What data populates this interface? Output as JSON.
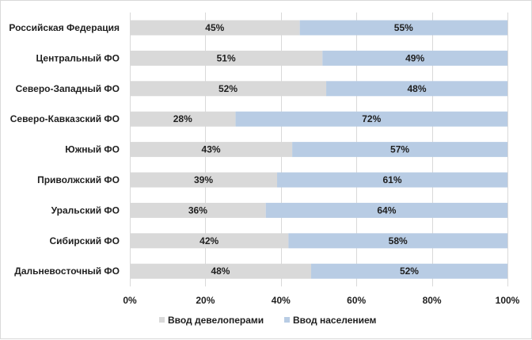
{
  "chart_data": {
    "type": "bar",
    "orientation": "horizontal",
    "stacked": "percent",
    "categories": [
      "Российская Федерация",
      "Центральный ФО",
      "Северо-Западный ФО",
      "Северо-Кавказский ФО",
      "Южный ФО",
      "Приволжский ФО",
      "Уральский ФО",
      "Сибирский ФО",
      "Дальневосточный ФО"
    ],
    "series": [
      {
        "name": "Ввод девелоперами",
        "color": "#d9d9d9",
        "values": [
          45,
          51,
          52,
          28,
          43,
          39,
          36,
          42,
          48
        ],
        "labels": [
          "45%",
          "51%",
          "52%",
          "28%",
          "43%",
          "39%",
          "36%",
          "42%",
          "48%"
        ]
      },
      {
        "name": "Ввод населением",
        "color": "#b8cce4",
        "values": [
          55,
          49,
          48,
          72,
          57,
          61,
          64,
          58,
          52
        ],
        "labels": [
          "55%",
          "49%",
          "48%",
          "72%",
          "57%",
          "61%",
          "64%",
          "58%",
          "52%"
        ]
      }
    ],
    "xlim": [
      0,
      100
    ],
    "xticks": [
      "0%",
      "20%",
      "40%",
      "60%",
      "80%",
      "100%"
    ],
    "grid": true,
    "legend_position": "bottom"
  }
}
